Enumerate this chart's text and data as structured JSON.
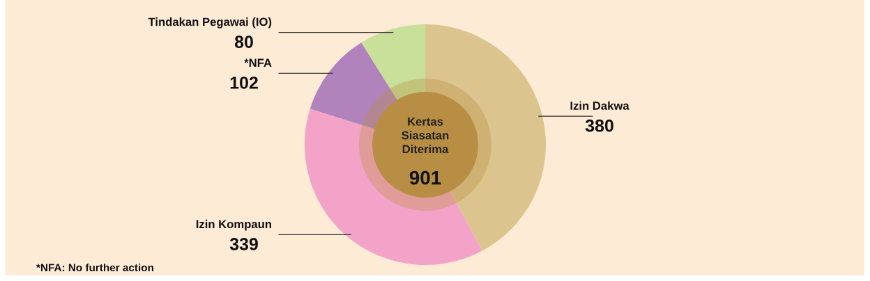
{
  "chart_data": {
    "type": "donut",
    "title": "Kertas Siasatan Diterima",
    "categories": [
      "Izin Dakwa",
      "Izin Kompaun",
      "*NFA",
      "Tindakan Pegawai (IO)"
    ],
    "values": [
      380,
      339,
      102,
      80
    ],
    "colors": [
      "#dcc48f",
      "#f4a3c8",
      "#b083bc",
      "#c9e09a"
    ],
    "data_labels": true,
    "annotations": [
      "901",
      "*NFA: No further action"
    ]
  }
}
